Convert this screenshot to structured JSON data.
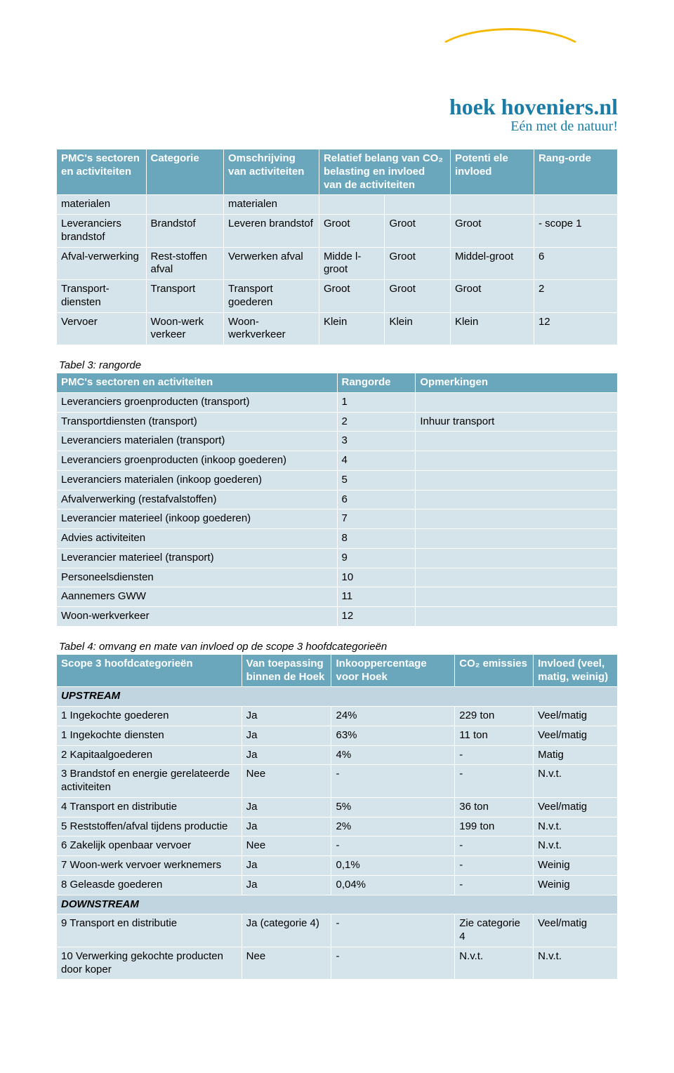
{
  "logo": {
    "brand": "hoek hoveniers",
    "ext": ".nl",
    "tagline": "Eén met de natuur!"
  },
  "table1": {
    "headers": {
      "h1": "PMC's sectoren en activiteiten",
      "h2": "Categorie",
      "h3": "Omschrijving van activiteiten",
      "h4": "Relatief belang van CO₂ belasting en invloed van de activiteiten",
      "h5": "Potenti ele invloed",
      "h6": "Rang-orde"
    },
    "rows": [
      {
        "c1": "materialen",
        "c2": "",
        "c3": "materialen",
        "c4": "",
        "c5": "",
        "c6": "",
        "c7": ""
      },
      {
        "c1": "Leveranciers brandstof",
        "c2": "Brandstof",
        "c3": "Leveren brandstof",
        "c4": "Groot",
        "c5": "Groot",
        "c6": "Groot",
        "c7": "- scope 1"
      },
      {
        "c1": "Afval-verwerking",
        "c2": "Rest-stoffen afval",
        "c3": "Verwerken afval",
        "c4": "Midde l-groot",
        "c5": "Groot",
        "c6": "Middel-groot",
        "c7": "6"
      },
      {
        "c1": "Transport-diensten",
        "c2": "Transport",
        "c3": "Transport goederen",
        "c4": "Groot",
        "c5": "Groot",
        "c6": "Groot",
        "c7": "2"
      },
      {
        "c1": "Vervoer",
        "c2": "Woon-werk verkeer",
        "c3": "Woon-werkverkeer",
        "c4": "Klein",
        "c5": "Klein",
        "c6": "Klein",
        "c7": "12"
      }
    ]
  },
  "table3": {
    "caption": "Tabel 3: rangorde",
    "headers": {
      "h1": "PMC's sectoren en activiteiten",
      "h2": "Rangorde",
      "h3": "Opmerkingen"
    },
    "rows": [
      {
        "c1": "Leveranciers groenproducten (transport)",
        "c2": "1",
        "c3": ""
      },
      {
        "c1": "Transportdiensten (transport)",
        "c2": "2",
        "c3": "Inhuur transport"
      },
      {
        "c1": "Leveranciers materialen (transport)",
        "c2": "3",
        "c3": ""
      },
      {
        "c1": "Leveranciers groenproducten (inkoop goederen)",
        "c2": "4",
        "c3": ""
      },
      {
        "c1": "Leveranciers materialen (inkoop goederen)",
        "c2": "5",
        "c3": ""
      },
      {
        "c1": "Afvalverwerking (restafvalstoffen)",
        "c2": "6",
        "c3": ""
      },
      {
        "c1": "Leverancier materieel (inkoop goederen)",
        "c2": "7",
        "c3": ""
      },
      {
        "c1": "Advies activiteiten",
        "c2": "8",
        "c3": ""
      },
      {
        "c1": "Leverancier materieel (transport)",
        "c2": "9",
        "c3": ""
      },
      {
        "c1": "Personeelsdiensten",
        "c2": "10",
        "c3": ""
      },
      {
        "c1": "Aannemers GWW",
        "c2": "11",
        "c3": ""
      },
      {
        "c1": "Woon-werkverkeer",
        "c2": "12",
        "c3": ""
      }
    ]
  },
  "table4": {
    "caption": "Tabel 4: omvang en mate van invloed op de scope 3 hoofdcategorieën",
    "headers": {
      "h1": "Scope 3 hoofdcategorieën",
      "h2": "Van toepassing binnen de Hoek",
      "h3": "Inkooppercentage voor Hoek",
      "h4": "CO₂ emissies",
      "h5": "Invloed (veel, matig, weinig)"
    },
    "section_up": "UPSTREAM",
    "section_down": "DOWNSTREAM",
    "rows_up": [
      {
        "c1": "1 Ingekochte goederen",
        "c2": "Ja",
        "c3": "24%",
        "c4": "229 ton",
        "c5": "Veel/matig"
      },
      {
        "c1": "1 Ingekochte diensten",
        "c2": "Ja",
        "c3": "63%",
        "c4": "11 ton",
        "c5": "Veel/matig"
      },
      {
        "c1": "2 Kapitaalgoederen",
        "c2": "Ja",
        "c3": "4%",
        "c4": "-",
        "c5": "Matig"
      },
      {
        "c1": "3 Brandstof en energie gerelateerde activiteiten",
        "c2": "Nee",
        "c3": "-",
        "c4": "-",
        "c5": "N.v.t."
      },
      {
        "c1": "4 Transport en distributie",
        "c2": "Ja",
        "c3": "5%",
        "c4": "36 ton",
        "c5": "Veel/matig"
      },
      {
        "c1": "5 Reststoffen/afval tijdens productie",
        "c2": "Ja",
        "c3": "2%",
        "c4": "199 ton",
        "c5": "N.v.t."
      },
      {
        "c1": "6 Zakelijk openbaar vervoer",
        "c2": "Nee",
        "c3": "-",
        "c4": "-",
        "c5": "N.v.t."
      },
      {
        "c1": "7 Woon-werk vervoer werknemers",
        "c2": "Ja",
        "c3": "0,1%",
        "c4": "-",
        "c5": "Weinig"
      },
      {
        "c1": "8 Geleasde goederen",
        "c2": "Ja",
        "c3": "0,04%",
        "c4": "-",
        "c5": "Weinig"
      }
    ],
    "rows_down": [
      {
        "c1": "9 Transport en distributie",
        "c2": "Ja (categorie 4)",
        "c3": "-",
        "c4": "Zie categorie 4",
        "c5": "Veel/matig"
      },
      {
        "c1": "10 Verwerking gekochte producten door koper",
        "c2": "Nee",
        "c3": "-",
        "c4": "N.v.t.",
        "c5": "N.v.t."
      }
    ]
  }
}
